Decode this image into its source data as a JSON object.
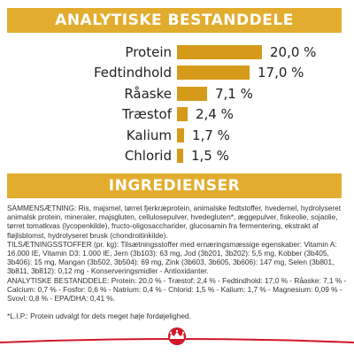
{
  "analysis": {
    "title": "ANALYTISKE BESTANDDELE",
    "rows": [
      {
        "label": "Protein",
        "value_text": "20,0 %",
        "value": 20.0
      },
      {
        "label": "Fedtindhold",
        "value_text": "17,0 %",
        "value": 17.0
      },
      {
        "label": "Råaske",
        "value_text": "7,1 %",
        "value": 7.1
      },
      {
        "label": "Træstof",
        "value_text": "2,4 %",
        "value": 2.4
      },
      {
        "label": "Kalium",
        "value_text": "1,7 %",
        "value": 1.7
      },
      {
        "label": "Chlorid",
        "value_text": "1,5 %",
        "value": 1.5
      }
    ]
  },
  "ingredients": {
    "title": "INGREDIENSER",
    "composition": "SAMMENSÆTNING: Ris, majsmel, tørret fjerkræprotein, animalske fedtstoffer, hvedemel, hydrolyseret animalsk protein, mineraler, majsgluten, cellulosepulver, hvedegluten*, æggepulver, fiskeolie, sojaolie, tørret tomatkvas (lycopenkilde), fructo-oligosaccharider, glucosamin fra fermentering, ekstrakt af fløjlsblomst, hydrolyseret brusk (chondroitinkilde).",
    "additives": "TILSÆTNINGSSTOFFER (pr. kg): Tilsætningsstoffer med ernæringsmæssige egenskaber: Vitamin A: 16.000 IE, Vitamin D3: 1.000 IE, Jern (3b103): 63 mg, Jod (3b201, 3b202): 5,5 mg, Kobber (3b405, 3b406): 15 mg, Mangan (3b502, 3b504): 69 mg, Zink (3b603, 3b605, 3b606): 147 mg, Selen (3b801, 3b811, 3b812): 0,12 mg - Konserveringsmidler - Antioxidanter.",
    "analytical": "ANALYTISKE BESTANDDELE: Protein: 20,0 % - Træstof: 2,4 % - Fedtindhold: 17,0 % - Råaske: 7,1 % - Calcium: 0,7 % - Fosfor: 0,6 % - Natrium: 0,4 % - Chlorid: 1,5 % - Kalium: 1,7 % - Magnesium: 0,09 % - Svovl: 0,8 % - EPA/DHA: 0,41 %.",
    "footnote": "*L.I.P.: Protein udvalgt for dets meget høje fordøjelighed."
  },
  "colors": {
    "header_bg": "#e2ad2f",
    "bar": "#d69a1a",
    "brand_red": "#d2172a"
  },
  "icons": {
    "logo": "royal-canin-crown-icon"
  }
}
